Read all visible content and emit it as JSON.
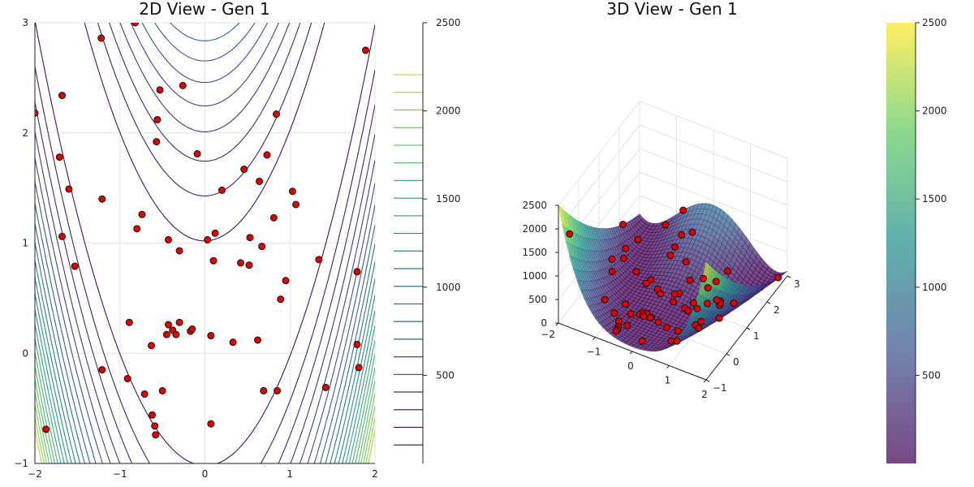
{
  "chart_data": [
    {
      "type": "contour",
      "title": "2D View - Gen 1",
      "xlim": [
        -2,
        2
      ],
      "ylim": [
        -1,
        3
      ],
      "x_ticks": [
        "-2",
        "-1",
        "0",
        "1",
        "2"
      ],
      "y_ticks": [
        "-1",
        "0",
        "1",
        "2",
        "3"
      ],
      "colorbar": {
        "range": [
          0,
          2500
        ],
        "ticks": [
          "500",
          "1000",
          "1500",
          "2000",
          "2500"
        ]
      },
      "colormap": [
        "#440154",
        "#3b528b",
        "#21908d",
        "#5ec962",
        "#fde725"
      ],
      "point_color": "#e00000",
      "points": [
        [
          -2.0,
          2.18
        ],
        [
          -1.68,
          2.34
        ],
        [
          -1.71,
          1.78
        ],
        [
          -1.6,
          1.49
        ],
        [
          -1.68,
          1.06
        ],
        [
          -1.53,
          0.79
        ],
        [
          -1.22,
          2.86
        ],
        [
          -1.21,
          1.4
        ],
        [
          -0.82,
          3.0
        ],
        [
          -0.53,
          2.39
        ],
        [
          -0.26,
          2.43
        ],
        [
          -0.56,
          2.12
        ],
        [
          -0.57,
          1.92
        ],
        [
          -0.09,
          1.81
        ],
        [
          0.46,
          1.67
        ],
        [
          0.73,
          1.8
        ],
        [
          0.64,
          1.56
        ],
        [
          0.84,
          2.17
        ],
        [
          0.2,
          1.48
        ],
        [
          1.03,
          1.47
        ],
        [
          1.07,
          1.35
        ],
        [
          1.89,
          2.75
        ],
        [
          -0.74,
          1.26
        ],
        [
          -0.8,
          1.13
        ],
        [
          -0.43,
          1.03
        ],
        [
          -0.3,
          0.93
        ],
        [
          0.03,
          1.03
        ],
        [
          0.12,
          1.09
        ],
        [
          0.53,
          1.05
        ],
        [
          0.67,
          0.97
        ],
        [
          0.81,
          1.23
        ],
        [
          0.1,
          0.84
        ],
        [
          0.42,
          0.82
        ],
        [
          0.52,
          0.8
        ],
        [
          1.34,
          0.85
        ],
        [
          1.79,
          0.74
        ],
        [
          0.95,
          0.66
        ],
        [
          0.89,
          0.49
        ],
        [
          -0.89,
          0.28
        ],
        [
          -0.43,
          0.26
        ],
        [
          -0.3,
          0.28
        ],
        [
          -0.38,
          0.21
        ],
        [
          -0.34,
          0.17
        ],
        [
          -0.45,
          0.17
        ],
        [
          -0.17,
          0.2
        ],
        [
          -0.15,
          0.22
        ],
        [
          0.07,
          0.16
        ],
        [
          0.33,
          0.1
        ],
        [
          0.62,
          0.12
        ],
        [
          -0.63,
          0.07
        ],
        [
          1.79,
          0.08
        ],
        [
          -1.21,
          -0.15
        ],
        [
          -0.91,
          -0.23
        ],
        [
          -0.71,
          -0.37
        ],
        [
          -0.5,
          -0.34
        ],
        [
          0.69,
          -0.34
        ],
        [
          0.85,
          -0.34
        ],
        [
          1.42,
          -0.31
        ],
        [
          1.81,
          -0.13
        ],
        [
          -0.62,
          -0.56
        ],
        [
          -0.59,
          -0.66
        ],
        [
          0.07,
          -0.64
        ],
        [
          -0.58,
          -0.74
        ],
        [
          -1.87,
          -0.69
        ]
      ]
    },
    {
      "type": "surface",
      "title": "3D View - Gen 1",
      "x_ticks": [
        "-1",
        "0",
        "1",
        "2"
      ],
      "y_ticks": [
        "-1",
        "0",
        "1",
        "2",
        "3"
      ],
      "z_ticks": [
        "0",
        "500",
        "1000",
        "1500",
        "2000",
        "2500"
      ],
      "x_tick_first": "−2",
      "colorbar": {
        "range": [
          0,
          2500
        ],
        "ticks": [
          "500",
          "1000",
          "1500",
          "2000",
          "2500"
        ]
      },
      "colormap": [
        "#440154",
        "#3b528b",
        "#21908d",
        "#5ec962",
        "#fde725"
      ],
      "surface_opacity": 0.72,
      "point_color": "#e00000"
    }
  ]
}
